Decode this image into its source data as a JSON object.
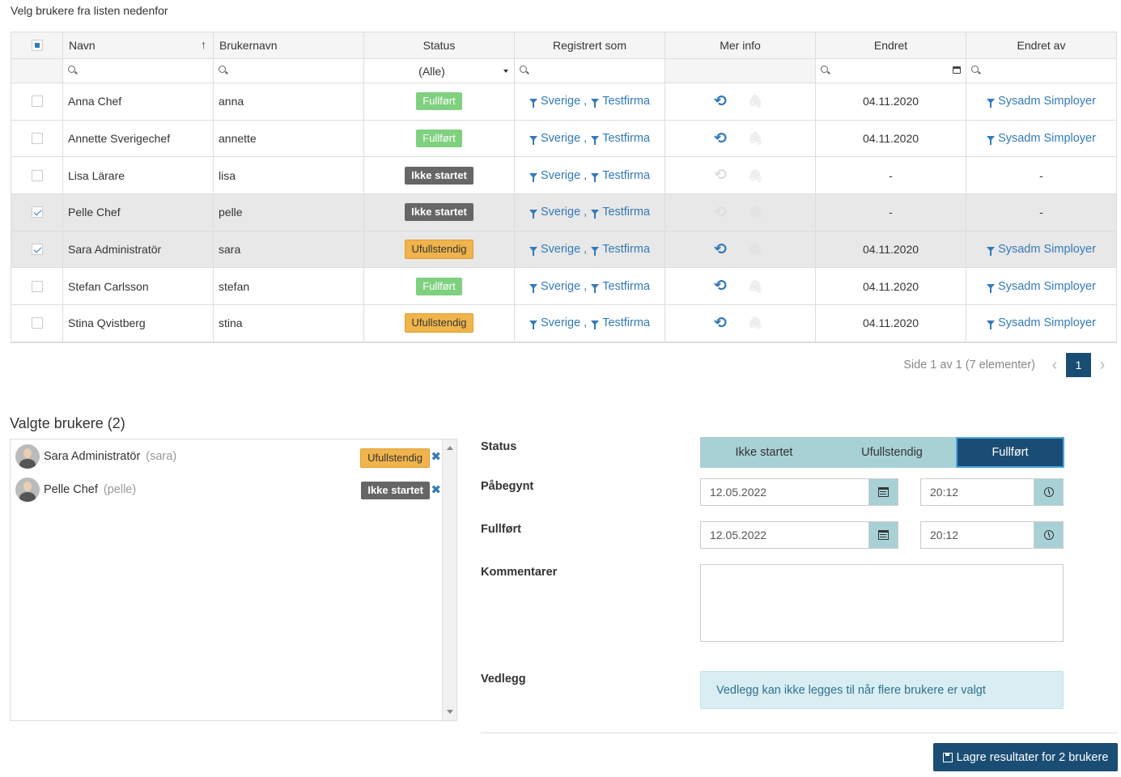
{
  "instruction": "Velg brukere fra listen nedenfor",
  "grid": {
    "headers": [
      "Navn",
      "Brukernavn",
      "Status",
      "Registrert som",
      "Mer info",
      "Endret",
      "Endret av"
    ],
    "sort_icon": "sort-ascending-icon",
    "status_filter": "(Alle)",
    "rows": [
      {
        "name": "Anna Chef",
        "username": "anna",
        "status": "Fullført",
        "status_type": "full",
        "reg1": "Sverige",
        "sep": ",",
        "reg2": "Testfirma",
        "history": true,
        "changed": "04.11.2020",
        "changed_by": "Sysadm Simployer",
        "checked": false,
        "selected": false
      },
      {
        "name": "Annette Sverigechef",
        "username": "annette",
        "status": "Fullført",
        "status_type": "full",
        "reg1": "Sverige",
        "sep": ",",
        "reg2": "Testfirma",
        "history": true,
        "changed": "04.11.2020",
        "changed_by": "Sysadm Simployer",
        "checked": false,
        "selected": false
      },
      {
        "name": "Lisa Lärare",
        "username": "lisa",
        "status": "Ikke startet",
        "status_type": "ikke",
        "reg1": "Sverige",
        "sep": ",",
        "reg2": "Testfirma",
        "history": false,
        "changed": "-",
        "changed_by": "-",
        "checked": false,
        "selected": false
      },
      {
        "name": "Pelle Chef",
        "username": "pelle",
        "status": "Ikke startet",
        "status_type": "ikke",
        "reg1": "Sverige",
        "sep": ",",
        "reg2": "Testfirma",
        "history": false,
        "changed": "-",
        "changed_by": "-",
        "checked": true,
        "selected": true
      },
      {
        "name": "Sara Administratör",
        "username": "sara",
        "status": "Ufullstendig",
        "status_type": "uful",
        "reg1": "Sverige",
        "sep": ",",
        "reg2": "Testfirma",
        "history": true,
        "changed": "04.11.2020",
        "changed_by": "Sysadm Simployer",
        "checked": true,
        "selected": true
      },
      {
        "name": "Stefan Carlsson",
        "username": "stefan",
        "status": "Fullført",
        "status_type": "full",
        "reg1": "Sverige",
        "sep": ",",
        "reg2": "Testfirma",
        "history": true,
        "changed": "04.11.2020",
        "changed_by": "Sysadm Simployer",
        "checked": false,
        "selected": false
      },
      {
        "name": "Stina Qvistberg",
        "username": "stina",
        "status": "Ufullstendig",
        "status_type": "uful",
        "reg1": "Sverige",
        "sep": ",",
        "reg2": "Testfirma",
        "history": true,
        "changed": "04.11.2020",
        "changed_by": "Sysadm Simployer",
        "checked": false,
        "selected": false
      }
    ]
  },
  "pager": {
    "info": "Side 1 av 1 (7 elementer)",
    "current_page": "1"
  },
  "selected_users": {
    "title": "Valgte brukere (2)",
    "items": [
      {
        "name": "Sara Administratör",
        "username": "(sara)",
        "status": "Ufullstendig",
        "status_type": "uful"
      },
      {
        "name": "Pelle Chef",
        "username": "(pelle)",
        "status": "Ikke startet",
        "status_type": "ikke"
      }
    ]
  },
  "form": {
    "status_label": "Status",
    "status_options": [
      "Ikke startet",
      "Ufullstendig",
      "Fullført"
    ],
    "status_active": "Fullført",
    "started_label": "Påbegynt",
    "started_date": "12.05.2022",
    "started_time": "20:12",
    "completed_label": "Fullført",
    "completed_date": "12.05.2022",
    "completed_time": "20:12",
    "comments_label": "Kommentarer",
    "comments_value": "",
    "attachment_label": "Vedlegg",
    "attachment_info": "Vedlegg kan ikke legges til når flere brukere er valgt",
    "save_label": "Lagre resultater for 2 brukere"
  },
  "colors": {
    "accent": "#337ab7",
    "primary_dark": "#1a4d74",
    "teal": "#a8d1d6",
    "done": "#7fd07f",
    "incomplete": "#f0b44c",
    "not_started": "#666666"
  }
}
